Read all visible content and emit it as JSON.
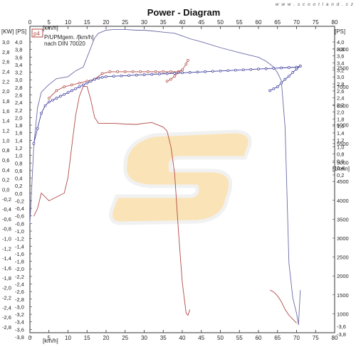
{
  "watermark": "w w w . s c o o t l a n d . c z",
  "chart_data": {
    "type": "line",
    "title": "Power - Diagram",
    "xlabel": "[km/h]",
    "x_ticks": [
      0,
      5,
      10,
      15,
      20,
      25,
      30,
      35,
      40,
      45,
      50,
      55,
      60,
      65,
      70,
      75,
      80
    ],
    "xlim": [
      0,
      80
    ],
    "left_units": {
      "kw": "[KW]",
      "ps": "[PS]"
    },
    "kw_ticks": [
      "3,0",
      "2,8",
      "2,6",
      "2,4",
      "2,2",
      "2,0",
      "1,8",
      "1,6",
      "1,4",
      "1,2",
      "1,0",
      "0,8",
      "0,6",
      "0,4",
      "0,2",
      "0,0",
      "-0,2",
      "-0,4",
      "-0,6",
      "-0,8",
      "-1,0",
      "-1,2",
      "-1,4",
      "-1,6",
      "-1,8",
      "-2,0",
      "-2,2",
      "-2,4",
      "-2,6",
      "-2,8"
    ],
    "ps_ticks": [
      "4,0",
      "3,8",
      "3,6",
      "3,4",
      "3,2",
      "3,0",
      "2,8",
      "2,6",
      "2,4",
      "2,2",
      "2,0",
      "1,8",
      "1,6",
      "1,4",
      "1,2",
      "1,0",
      "0,8",
      "0,6",
      "0,4",
      "0,2",
      "0,0",
      "-0,2",
      "-0,4",
      "-0,6",
      "-0,8",
      "-1,0",
      "-1,2",
      "-1,4",
      "-1,6",
      "-1,8",
      "-2,0",
      "-2,2",
      "-2,4",
      "-2,6",
      "-2,8",
      "-3,0",
      "-3,2",
      "-3,4",
      "-3,6",
      "-3,8"
    ],
    "right_ps_unit": "[PS]",
    "right_ps_ticks": [
      "4,0",
      "3,8",
      "3,6",
      "3,4",
      "3,2",
      "3,0",
      "2,8",
      "2,6",
      "2,4",
      "2,2",
      "2,0",
      "1,8",
      "1,6",
      "1,4",
      "1,2",
      "1,0",
      "0,8",
      "0,6",
      "0,4",
      "0,2"
    ],
    "right_ps_bottom_ticks": [
      "-3,6",
      "-3,8"
    ],
    "right_rpm_unit": "[1/min]",
    "right_rpm_ticks": [
      "8000",
      "7500",
      "7000",
      "6500",
      "6000",
      "5500",
      "5000",
      "4500",
      "4000",
      "3500",
      "3000",
      "2500",
      "2000",
      "1500",
      "1000"
    ],
    "legend": {
      "id": "p4",
      "line1": "P/UPMgem. /[km/h]",
      "line2": "nach DIN 70020"
    },
    "ps_range": [
      -3.8,
      4.1
    ],
    "rpm_range": [
      500,
      8600
    ],
    "series": [
      {
        "name": "p4",
        "color": "#6a6aa6",
        "axis": "ps",
        "x": [
          0,
          1,
          2,
          3,
          5,
          7,
          10,
          12,
          14,
          15,
          16,
          17,
          18,
          20,
          22,
          25,
          28,
          30,
          32,
          35,
          38,
          40,
          42,
          45,
          50,
          55,
          60,
          62,
          64,
          65,
          66,
          67,
          68,
          69,
          70,
          70.5,
          71
        ],
        "y": [
          -1.0,
          1.0,
          2.0,
          2.4,
          2.6,
          2.75,
          2.8,
          2.95,
          3.05,
          3.3,
          3.55,
          3.8,
          3.92,
          4.0,
          4.02,
          4.02,
          4.0,
          4.0,
          3.98,
          3.95,
          3.92,
          3.85,
          3.78,
          3.7,
          3.55,
          3.42,
          3.3,
          3.2,
          3.05,
          2.9,
          2.7,
          1.5,
          -2.0,
          -2.9,
          -3.3,
          -3.6,
          -2.7
        ]
      },
      {
        "color": "#b04a45",
        "axis": "ps",
        "x": [
          1,
          2,
          3,
          5,
          7,
          9,
          10,
          11,
          12,
          13,
          14,
          15,
          16,
          17,
          18,
          20,
          22,
          25,
          28,
          30,
          32,
          35,
          36,
          37,
          38,
          39,
          40,
          41,
          41.5,
          42
        ],
        "y": [
          -0.8,
          -0.6,
          -0.2,
          -0.4,
          -0.3,
          -0.2,
          0.2,
          1.0,
          1.8,
          2.3,
          2.55,
          2.55,
          2.2,
          1.75,
          1.6,
          1.6,
          1.6,
          1.58,
          1.57,
          1.6,
          1.62,
          1.5,
          1.4,
          1.0,
          0.3,
          -1.2,
          -2.5,
          -3.3,
          -3.35,
          -3.2
        ]
      },
      {
        "color": "#b04a45",
        "axis": "rpm",
        "markers": true,
        "x": [
          5,
          7,
          9,
          11,
          13,
          15,
          17,
          19,
          21,
          23,
          25,
          27,
          29,
          31,
          33,
          35,
          37,
          39,
          40,
          41,
          41.5
        ],
        "y": [
          6700,
          6900,
          7000,
          7050,
          7100,
          7150,
          7200,
          7350,
          7400,
          7400,
          7400,
          7400,
          7400,
          7400,
          7400,
          7400,
          7400,
          7400,
          7450,
          7600,
          7700
        ]
      },
      {
        "color": "#b04a45",
        "axis": "rpm",
        "markers": true,
        "x": [
          36,
          37,
          38,
          39,
          40
        ],
        "y": [
          7150,
          7200,
          7280,
          7380,
          7450
        ]
      },
      {
        "color": "#3a3a9a",
        "axis": "rpm",
        "markers": true,
        "x": [
          1,
          2,
          3,
          4,
          5,
          6,
          7,
          8,
          9,
          10,
          11,
          12,
          13,
          14,
          15,
          16,
          17,
          18,
          19,
          20,
          22,
          24,
          26,
          28,
          30,
          32,
          34,
          36,
          38,
          40,
          42,
          44,
          46,
          48,
          50,
          52,
          54,
          56,
          58,
          60,
          62,
          64,
          66,
          68,
          70,
          71
        ],
        "y": [
          5500,
          5900,
          6300,
          6500,
          6600,
          6650,
          6700,
          6750,
          6800,
          6850,
          6900,
          6950,
          7000,
          7050,
          7100,
          7150,
          7200,
          7230,
          7250,
          7270,
          7280,
          7290,
          7300,
          7310,
          7320,
          7330,
          7340,
          7350,
          7360,
          7370,
          7380,
          7390,
          7400,
          7410,
          7420,
          7430,
          7440,
          7450,
          7460,
          7470,
          7480,
          7490,
          7500,
          7510,
          7520,
          7550
        ]
      },
      {
        "color": "#3a3a9a",
        "axis": "rpm",
        "markers": true,
        "x": [
          63,
          64,
          65,
          66,
          67,
          68,
          69,
          70,
          71
        ],
        "y": [
          6900,
          6950,
          7000,
          7100,
          7200,
          7280,
          7380,
          7470,
          7550
        ]
      },
      {
        "color": "#b04a45",
        "axis": "ps",
        "x": [
          63,
          64,
          65,
          66,
          67,
          68,
          69,
          70
        ],
        "y": [
          -2.7,
          -2.75,
          -2.85,
          -3.0,
          -3.2,
          -3.35,
          -3.45,
          -3.55
        ]
      }
    ]
  }
}
